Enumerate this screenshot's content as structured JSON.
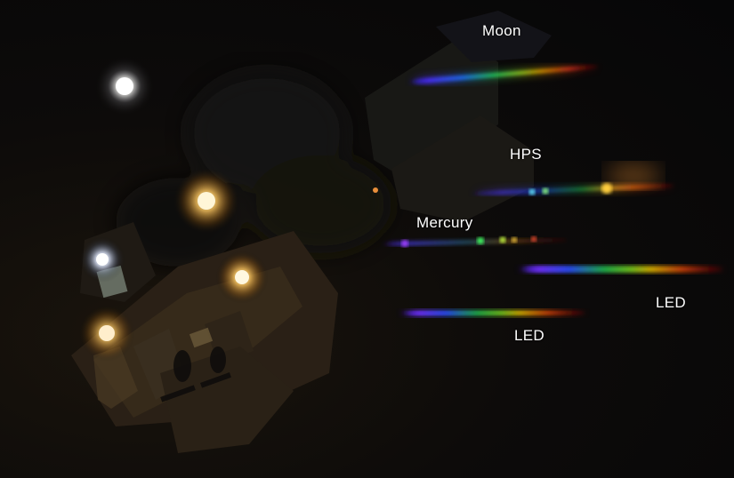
{
  "labels": {
    "moon": "Moon",
    "hps": "HPS",
    "mercury": "Mercury",
    "led_right": "LED",
    "led_bottom": "LED"
  },
  "colors": {
    "sky": "#060607",
    "lamp_glow": "#ffd070",
    "moon_glow": "#f4f4f0"
  }
}
